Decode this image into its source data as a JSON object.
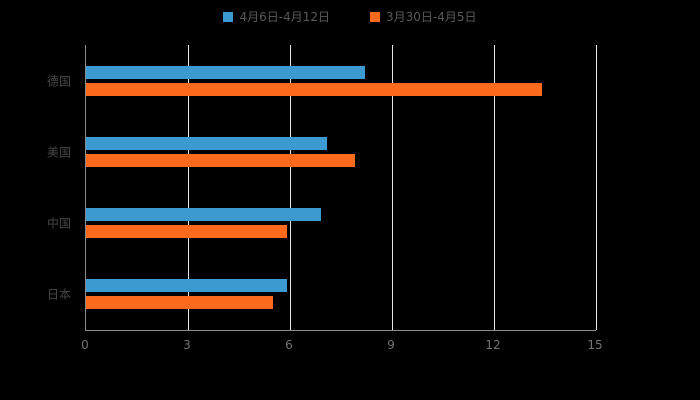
{
  "chart": {
    "background": "#000000",
    "axis_color": "#8c8c8c",
    "gridline_color": "#e6e6e6",
    "tick_label_color": "#737373",
    "category_label_color": "#474747",
    "legend_text_color": "#595959"
  },
  "chart_data": {
    "type": "bar",
    "orientation": "horizontal",
    "title": "",
    "xlabel": "",
    "ylabel": "",
    "categories": [
      "德国",
      "美国",
      "中国",
      "日本"
    ],
    "series": [
      {
        "name": "4月6日-4月12日",
        "color": "#3d9ad1",
        "values": [
          8.2,
          7.1,
          6.9,
          5.9
        ]
      },
      {
        "name": "3月30日-4月5日",
        "color": "#fd6a1e",
        "values": [
          13.4,
          7.9,
          5.9,
          5.5
        ]
      }
    ],
    "xlim": [
      0,
      15
    ],
    "xticks": [
      0,
      3,
      6,
      9,
      12,
      15
    ],
    "grid": true,
    "legend_position": "top"
  }
}
